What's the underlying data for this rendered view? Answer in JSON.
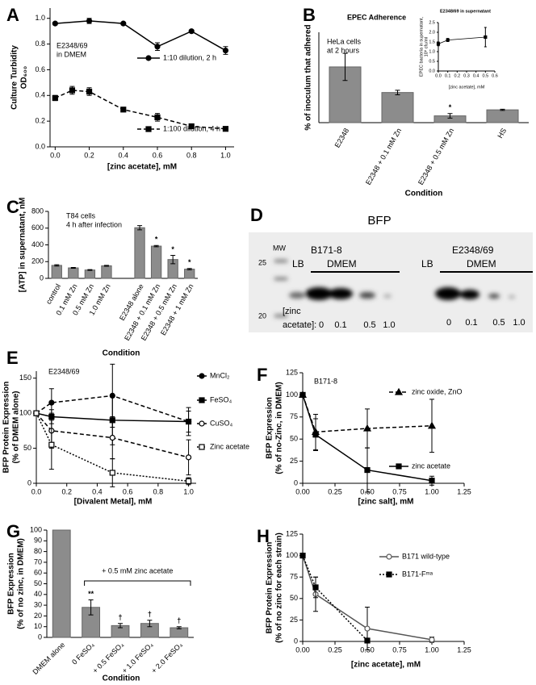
{
  "chart_data": [
    {
      "panel": "A",
      "type": "line",
      "ylabel": [
        "Culture Turbidity",
        "OD₆₀₀"
      ],
      "xlabel": "[zinc acetate], mM",
      "annotation": [
        "E2348/69",
        "in DMEM"
      ],
      "xlim": [
        -0.03,
        1.05
      ],
      "xticks": [
        {
          "value": 0,
          "label": "0.0"
        },
        0.2,
        0.4,
        0.6,
        0.8,
        {
          "value": 1,
          "label": "1.0"
        }
      ],
      "ylim": [
        0,
        1.08
      ],
      "yticks": [
        {
          "value": 0,
          "label": "0.0"
        },
        0.2,
        0.4,
        0.6,
        0.8,
        {
          "value": 1,
          "label": "1.0"
        }
      ],
      "series": [
        {
          "name": "1:10 dilution, 2 h",
          "color": "#000000",
          "marker": "circle",
          "filled": true,
          "line_style": "solid",
          "x": [
            0,
            0.2,
            0.4,
            0.6,
            0.8,
            1.0
          ],
          "values": [
            0.96,
            0.98,
            0.96,
            0.78,
            0.9,
            0.75
          ],
          "errors": [
            0.01,
            0.02,
            0.01,
            0.03,
            0.01,
            0.03
          ]
        },
        {
          "name": "1:100 dilution, 4 h",
          "color": "#000000",
          "marker": "square",
          "filled": true,
          "line_style": "dashed",
          "x": [
            0,
            0.1,
            0.2,
            0.4,
            0.6,
            0.8,
            1.0
          ],
          "values": [
            0.38,
            0.44,
            0.43,
            0.29,
            0.23,
            0.16,
            0.14
          ],
          "errors": [
            0.02,
            0.03,
            0.03,
            0.01,
            0.03,
            0.01,
            0.01
          ]
        }
      ]
    },
    {
      "panel": "B",
      "type": "bar",
      "title": "EPEC Adherence",
      "annotation": [
        "HeLa cells",
        "at 2 hours"
      ],
      "ylabel": "% of inoculum that adhered",
      "xlabel": "Condition",
      "categories": [
        "E2348",
        "E2348 + 0.1 mM Zn",
        "E2348 + 0.5 mM Zn",
        "HS"
      ],
      "values": [
        37,
        20,
        4.5,
        8.5
      ],
      "errors": [
        9,
        1.5,
        1.5,
        0.4
      ],
      "significance": [
        null,
        null,
        "*",
        null
      ],
      "color": "#8c8c8c",
      "ylim": [
        0,
        60
      ]
    },
    {
      "type": "line",
      "title": "E2348/69 in supernatant",
      "ylabel": [
        "EPEC bacteria in supernatant,",
        "10⁸ cfu/ml"
      ],
      "xlabel": "[zinc acetate], mM",
      "xlim": [
        0,
        0.6
      ],
      "xticks": [
        {
          "value": 0,
          "label": "0.0"
        },
        0.1,
        0.2,
        0.3,
        0.4,
        0.5,
        0.6
      ],
      "ylim": [
        0,
        2.5
      ],
      "yticks": [
        {
          "value": 0,
          "label": "0.0"
        },
        0.5,
        {
          "value": 1,
          "label": "1.0"
        },
        1.5,
        {
          "value": 2,
          "label": "2.0"
        },
        2.5
      ],
      "series": [
        {
          "color": "#000000",
          "marker": "square",
          "filled": true,
          "line_style": "solid",
          "x": [
            0,
            0.1,
            0.5
          ],
          "values": [
            1.4,
            1.6,
            1.75
          ],
          "errors": [
            0.1,
            0.08,
            0.5
          ]
        }
      ]
    },
    {
      "panel": "C",
      "type": "bar",
      "annotation": [
        "T84 cells",
        "4 h after infection"
      ],
      "ylabel": "[ATP] in supernatant, nM",
      "xlabel": "Condition",
      "categories": [
        "control",
        "0.1 mM Zn",
        "0.5 mM Zn",
        "1.0 mM Zn",
        null,
        "E2348 alone",
        "E2348 + 0.1 mM Zn",
        "E2348 + 0.5 mM Zn",
        "E2348 + 1 mM Zn"
      ],
      "values": [
        155,
        125,
        100,
        150,
        null,
        605,
        385,
        225,
        110
      ],
      "errors": [
        8,
        5,
        5,
        5,
        null,
        25,
        8,
        50,
        8
      ],
      "significance": [
        null,
        null,
        null,
        null,
        null,
        null,
        "*",
        "*",
        "*"
      ],
      "color": "#8c8c8c",
      "ylim": [
        0,
        800
      ],
      "yticks": [
        0,
        200,
        400,
        600,
        800
      ]
    },
    {
      "panel": "D",
      "type": "blot",
      "title": "BFP",
      "mw_label": "MW",
      "mw_markers": [
        25,
        20
      ],
      "strains": [
        {
          "name": "B171-8",
          "lb": "LB",
          "dmem": "DMEM"
        },
        {
          "name": "E2348/69",
          "lb": "LB",
          "dmem": "DMEM"
        }
      ],
      "zinc_label": [
        "[zinc",
        "acetate]:"
      ],
      "concentrations": [
        "0",
        "0.1",
        "0.5",
        "1.0"
      ]
    },
    {
      "panel": "E",
      "type": "line",
      "annotation": [
        "E2348/69"
      ],
      "ylabel": [
        "BFP Protein Expression",
        "(% of DMEM alone)"
      ],
      "xlabel": "[Divalent Metal], mM",
      "xlim": [
        0,
        1.05
      ],
      "xticks": [
        {
          "value": 0,
          "label": "0.0"
        },
        0.2,
        0.4,
        0.6,
        0.8,
        {
          "value": 1,
          "label": "1.0"
        }
      ],
      "ylim": [
        0,
        160
      ],
      "yticks": [
        0,
        50,
        100,
        150
      ],
      "series": [
        {
          "name": "MnCl₂",
          "color": "#000000",
          "marker": "circle",
          "filled": true,
          "line_style": "dashed",
          "x": [
            0,
            0.1,
            0.5,
            1.0
          ],
          "values": [
            100,
            115,
            125,
            88
          ],
          "errors": [
            0,
            20,
            45,
            20
          ]
        },
        {
          "name": "FeSO₄",
          "color": "#000000",
          "marker": "square",
          "filled": true,
          "line_style": "solid",
          "x": [
            0,
            0.1,
            0.5,
            1.0
          ],
          "values": [
            100,
            95,
            90,
            88
          ],
          "errors": [
            0,
            10,
            35,
            15
          ]
        },
        {
          "name": "CuSO₄",
          "color": "#000000",
          "marker": "circle",
          "filled": false,
          "line_style": "dashed",
          "x": [
            0,
            0.1,
            0.5,
            1.0
          ],
          "values": [
            100,
            75,
            65,
            37
          ],
          "errors": [
            0,
            25,
            30,
            25
          ]
        },
        {
          "name": "Zinc acetate",
          "color": "#000000",
          "marker": "square",
          "filled": false,
          "line_style": "dotted",
          "x": [
            0,
            0.1,
            0.5,
            1.0
          ],
          "values": [
            100,
            55,
            15,
            3
          ],
          "errors": [
            0,
            35,
            20,
            5
          ]
        }
      ]
    },
    {
      "panel": "F",
      "type": "line",
      "annotation": [
        "B171-8"
      ],
      "ylabel": [
        "BFP Expression",
        "(% of no-Zinc, in DMEM)"
      ],
      "xlabel": "[zinc salt], mM",
      "xlim": [
        0,
        1.25
      ],
      "xticks": [
        {
          "value": 0,
          "label": "0.00"
        },
        0.25,
        {
          "value": 0.5,
          "label": "0.50"
        },
        0.75,
        {
          "value": 1,
          "label": "1.00"
        },
        1.25
      ],
      "ylim": [
        0,
        125
      ],
      "yticks": [
        0,
        25,
        50,
        75,
        100,
        125
      ],
      "series": [
        {
          "name": "zinc oxide, ZnO",
          "color": "#000000",
          "marker": "triangle",
          "filled": true,
          "line_style": "dashed",
          "x": [
            0,
            0.1,
            0.5,
            1.0
          ],
          "values": [
            100,
            58,
            62,
            65
          ],
          "errors": [
            0,
            20,
            22,
            30
          ]
        },
        {
          "name": "zinc acetate",
          "color": "#000000",
          "marker": "square",
          "filled": true,
          "line_style": "solid",
          "x": [
            0,
            0.1,
            0.5,
            1.0
          ],
          "values": [
            100,
            55,
            15,
            3
          ],
          "errors": [
            0,
            18,
            25,
            5
          ]
        }
      ]
    },
    {
      "panel": "G",
      "type": "bar",
      "ylabel": [
        "BFP Expression",
        "(% of no zinc, in DMEM)"
      ],
      "xlabel": "Condition",
      "bracket_label": "+ 0.5 mM zinc acetate",
      "categories": [
        "DMEM alone",
        "0 FeSO₄",
        "+ 0.5 FeSO₄",
        "+ 1.0 FeSO₄",
        "+ 2.0 FeSO₄"
      ],
      "values": [
        100,
        28,
        11,
        13,
        9
      ],
      "errors": [
        null,
        7,
        2,
        3,
        1
      ],
      "significance": [
        null,
        "**",
        "†",
        "†",
        "†"
      ],
      "color": "#8c8c8c",
      "ylim": [
        0,
        100
      ],
      "yticks": [
        0,
        10,
        20,
        30,
        40,
        50,
        60,
        70,
        80,
        90,
        100
      ]
    },
    {
      "panel": "H",
      "type": "line",
      "ylabel": [
        "BFP Protein Expression",
        "(% of no zinc for each strain)"
      ],
      "xlabel": "[zinc acetate], mM",
      "xlim": [
        0,
        1.25
      ],
      "xticks": [
        {
          "value": 0,
          "label": "0.00"
        },
        0.25,
        {
          "value": 0.5,
          "label": "0.50"
        },
        0.75,
        {
          "value": 1,
          "label": "1.00"
        },
        1.25
      ],
      "ylim": [
        0,
        125
      ],
      "yticks": [
        0,
        25,
        50,
        75,
        100,
        125
      ],
      "series": [
        {
          "name": "B171 wild-type",
          "color": "#555555",
          "marker": "circle",
          "filled": false,
          "line_style": "solid",
          "x": [
            0,
            0.1,
            0.5,
            1.0
          ],
          "values": [
            100,
            55,
            15,
            2
          ],
          "errors": [
            0,
            20,
            25,
            3
          ]
        },
        {
          "name": "B171-Fᵐᵃ",
          "color": "#000000",
          "marker": "square",
          "filled": true,
          "line_style": "dotted",
          "x": [
            0,
            0.1,
            0.5
          ],
          "values": [
            100,
            63,
            1
          ],
          "errors": [
            0,
            12,
            1
          ]
        }
      ]
    }
  ]
}
